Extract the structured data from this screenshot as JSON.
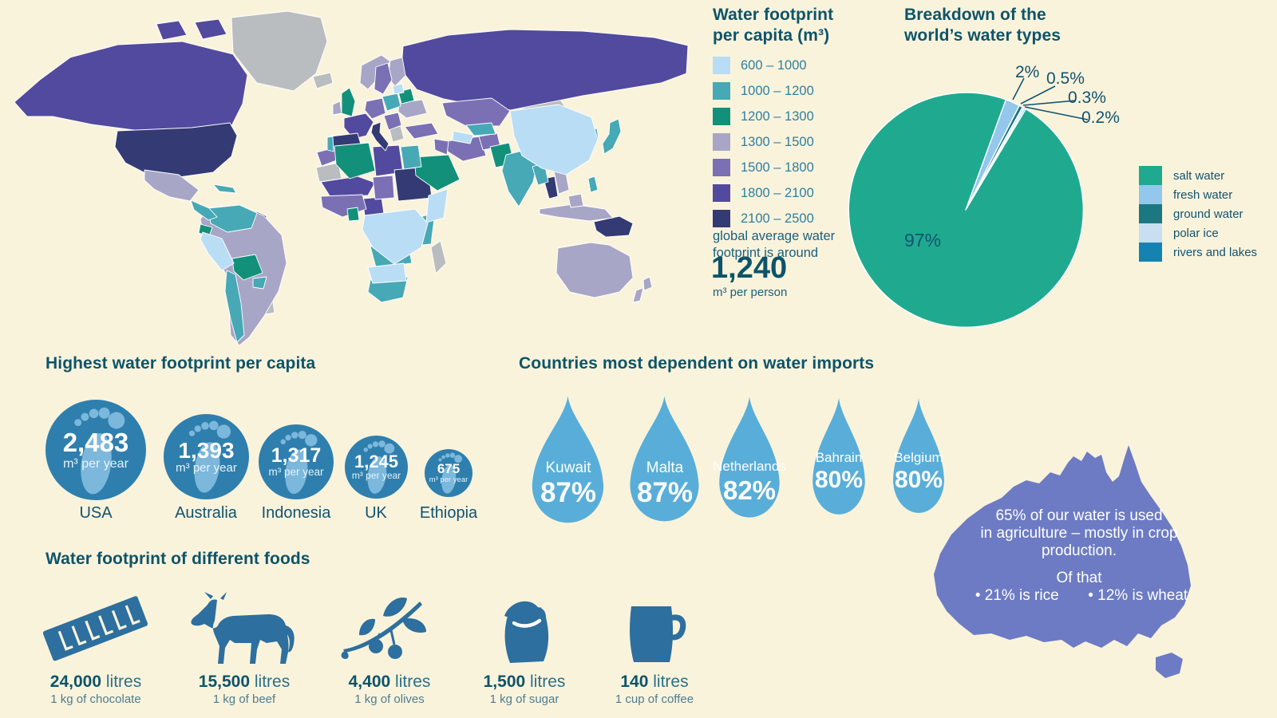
{
  "palette": {
    "background": "#faf3dc",
    "heading": "#0d5469",
    "label": "#12536f",
    "legendtext": "#2e7f9f",
    "subtext": "#4d7d8e",
    "nodata": "#b9bdc0",
    "bin1": "#b9ddf4",
    "bin2": "#46a9b5",
    "bin3": "#129079",
    "bin4": "#a8a6c6",
    "bin5": "#7b70b3",
    "bin6": "#524a9e",
    "bin7": "#333a74",
    "pie_salt": "#1faa90",
    "pie_fresh": "#93c7ec",
    "pie_ground": "#1b7880",
    "pie_polar": "#c9def1",
    "pie_rivers": "#1583b2",
    "drop": "#58aed9",
    "circle_blue": "#2e7fae",
    "foot_light": "#7cb7dc",
    "food_icon": "#2d6f9e",
    "australia": "#6d7bc4"
  },
  "map_legend": {
    "title1": "Water footprint",
    "title2": "per capita (m³)",
    "bins": [
      {
        "range": "600 – 1000"
      },
      {
        "range": "1000 – 1200"
      },
      {
        "range": "1200 – 1300"
      },
      {
        "range": "1300 – 1500"
      },
      {
        "range": "1500 – 1800"
      },
      {
        "range": "1800 – 2100"
      },
      {
        "range": "2100 – 2500"
      }
    ],
    "avg1": "global average water",
    "avg2": "footprint is around",
    "avg_value": "1,240",
    "avg_unit": "m³ per person"
  },
  "pie_section": {
    "title1": "Breakdown of the",
    "title2": "world’s water types",
    "inner_label": "97%",
    "callouts": {
      "fresh": "2%",
      "ground": "0.5%",
      "polar": "0.3%",
      "rivers": "0.2%"
    },
    "legend": [
      "salt water",
      "fresh water",
      "ground water",
      "polar ice",
      "rivers and lakes"
    ]
  },
  "footprints": {
    "title": "Highest water footprint per capita",
    "items": [
      {
        "country": "USA",
        "value": "2,483",
        "unit": "m³ per year"
      },
      {
        "country": "Australia",
        "value": "1,393",
        "unit": "m³ per year"
      },
      {
        "country": "Indonesia",
        "value": "1,317",
        "unit": "m³ per year"
      },
      {
        "country": "UK",
        "value": "1,245",
        "unit": "m³ per year"
      },
      {
        "country": "Ethiopia",
        "value": "675",
        "unit": "m³ per year"
      }
    ]
  },
  "imports": {
    "title": "Countries most dependent on water imports",
    "items": [
      {
        "country": "Kuwait",
        "pct": "87%"
      },
      {
        "country": "Malta",
        "pct": "87%"
      },
      {
        "country": "Netherlands",
        "pct": "82%"
      },
      {
        "country": "Bahrain",
        "pct": "80%"
      },
      {
        "country": "Belgium",
        "pct": "80%"
      }
    ]
  },
  "foods": {
    "title": "Water footprint of different foods",
    "items": [
      {
        "value": "24,000",
        "unit": "litres",
        "desc": "1 kg of chocolate",
        "icon": "chocolate-bar-icon"
      },
      {
        "value": "15,500",
        "unit": "litres",
        "desc": "1 kg of beef",
        "icon": "cow-icon"
      },
      {
        "value": "4,400",
        "unit": "litres",
        "desc": "1 kg of olives",
        "icon": "olive-branch-icon"
      },
      {
        "value": "1,500",
        "unit": "litres",
        "desc": "1 kg of sugar",
        "icon": "sugar-bag-icon"
      },
      {
        "value": "140",
        "unit": "litres",
        "desc": "1 cup of coffee",
        "icon": "coffee-mug-icon"
      }
    ]
  },
  "australia_fact": {
    "line1": "65% of our water is used",
    "line2": "in agriculture – mostly in crop",
    "line3": "production.",
    "of_that": "Of that",
    "bullet1": "• 21% is rice",
    "bullet2": "• 12% is wheat"
  },
  "chart_data": [
    {
      "type": "heatmap",
      "subtype": "world-choropleth",
      "title": "Water footprint per capita (m³)",
      "bins": [
        {
          "range": [
            600,
            1000
          ],
          "color": "#b9ddf4"
        },
        {
          "range": [
            1000,
            1200
          ],
          "color": "#46a9b5"
        },
        {
          "range": [
            1200,
            1300
          ],
          "color": "#129079"
        },
        {
          "range": [
            1300,
            1500
          ],
          "color": "#a8a6c6"
        },
        {
          "range": [
            1500,
            1800
          ],
          "color": "#7b70b3"
        },
        {
          "range": [
            1800,
            2100
          ],
          "color": "#524a9e"
        },
        {
          "range": [
            2100,
            2500
          ],
          "color": "#333a74"
        }
      ],
      "no_data_color": "#b9bdc0",
      "global_average": 1240,
      "global_average_unit": "m³ per person"
    },
    {
      "type": "pie",
      "title": "Breakdown of the world’s water types",
      "labels": [
        "salt water",
        "fresh water",
        "ground water",
        "polar ice",
        "rivers and lakes"
      ],
      "values": [
        97,
        2,
        0.5,
        0.3,
        0.2
      ],
      "colors": [
        "#1faa90",
        "#93c7ec",
        "#1b7880",
        "#c9def1",
        "#1583b2"
      ],
      "start_angle": 20,
      "legend_position": "right"
    },
    {
      "type": "bar",
      "subtype": "proportional-circles",
      "title": "Highest water footprint per capita",
      "categories": [
        "USA",
        "Australia",
        "Indonesia",
        "UK",
        "Ethiopia"
      ],
      "values": [
        2483,
        1393,
        1317,
        1245,
        675
      ],
      "unit": "m³ per year"
    },
    {
      "type": "bar",
      "subtype": "proportional-drops",
      "title": "Countries most dependent on water imports",
      "categories": [
        "Kuwait",
        "Malta",
        "Netherlands",
        "Bahrain",
        "Belgium"
      ],
      "values": [
        87,
        87,
        82,
        80,
        80
      ],
      "unit": "percent"
    },
    {
      "type": "bar",
      "subtype": "pictogram",
      "title": "Water footprint of different foods",
      "categories": [
        "1 kg of chocolate",
        "1 kg of beef",
        "1 kg of olives",
        "1 kg of sugar",
        "1 cup of coffee"
      ],
      "values": [
        24000,
        15500,
        4400,
        1500,
        140
      ],
      "unit": "litres"
    },
    {
      "type": "table",
      "subtype": "annotation",
      "title": "Australia water use",
      "values": [
        65,
        21,
        12
      ],
      "labels": [
        "water used in agriculture %",
        "of that rice %",
        "of that wheat %"
      ]
    }
  ]
}
